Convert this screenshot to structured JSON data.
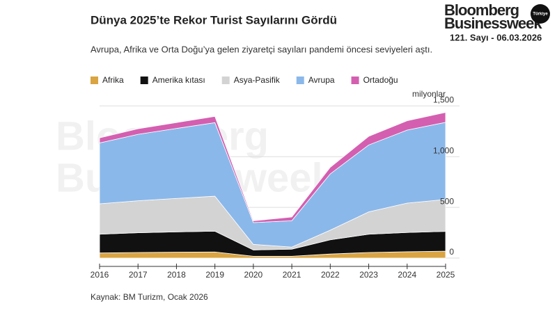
{
  "header": {
    "brand_line1": "Bloomberg",
    "brand_line2": "Businessweek",
    "edition": "Türkiye",
    "issue": "121. Sayı - 06.03.2026"
  },
  "chart_data": {
    "type": "stacked_area",
    "title": "Dünya 2025’te Rekor Turist Sayılarını Gördü",
    "subtitle": "Avrupa, Afrika ve Orta Doğu’ya gelen ziyaretçi sayıları pandemi öncesi seviyeleri aştı.",
    "y_unit_label": "milyonlar",
    "source": "Kaynak: BM Turizm, Ocak 2026",
    "categories": [
      "2016",
      "2017",
      "2018",
      "2019",
      "2020",
      "2021",
      "2022",
      "2023",
      "2024",
      "2025"
    ],
    "series": [
      {
        "name": "Afrika",
        "color": "#d9a441",
        "values": [
          50,
          55,
          58,
          60,
          18,
          18,
          40,
          55,
          62,
          68
        ]
      },
      {
        "name": "Amerika kıtası",
        "color": "#111111",
        "values": [
          185,
          195,
          200,
          205,
          62,
          70,
          140,
          180,
          190,
          195
        ]
      },
      {
        "name": "Asya-Pasifik",
        "color": "#d3d3d3",
        "values": [
          300,
          315,
          330,
          345,
          55,
          20,
          95,
          220,
          290,
          315
        ]
      },
      {
        "name": "Avrupa",
        "color": "#8bb8ea",
        "values": [
          600,
          655,
          690,
          725,
          215,
          260,
          555,
          660,
          720,
          760
        ]
      },
      {
        "name": "Ortadoğu",
        "color": "#d45fb0",
        "values": [
          50,
          55,
          58,
          62,
          17,
          37,
          65,
          85,
          92,
          98
        ]
      }
    ],
    "ylim": [
      0,
      1550
    ],
    "yticks": [
      0,
      500,
      {
        "value": 1000,
        "label": "1,000"
      },
      {
        "value": 1500,
        "label": "1,500"
      }
    ],
    "legend": "top-left"
  }
}
